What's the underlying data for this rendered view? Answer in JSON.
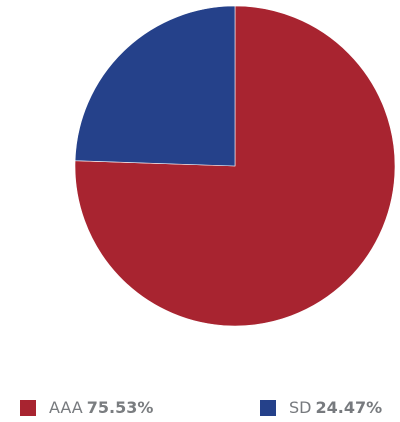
{
  "chart_data": {
    "type": "pie",
    "slices": [
      {
        "label": "AAA",
        "value": 75.53,
        "display": "75.53%",
        "color": "#a82430"
      },
      {
        "label": "SD",
        "value": 24.47,
        "display": "24.47%",
        "color": "#25418a"
      }
    ],
    "start_angle": "12 o'clock, clockwise",
    "legend_position": "bottom"
  }
}
